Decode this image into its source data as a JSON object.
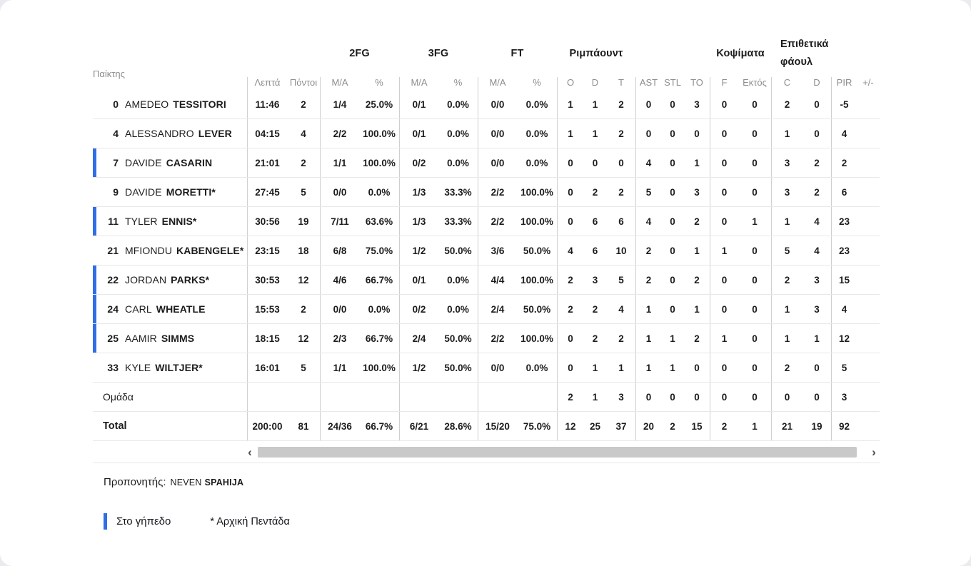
{
  "colors": {
    "accent_blue": "#2e6fe8",
    "text": "#1c1c1e",
    "muted": "#8d8d8d",
    "row_line": "#e8e8e8",
    "group_line": "#cfcfcf",
    "scrollbar_thumb": "#c9c9c9",
    "page_bg": "#e9ebee"
  },
  "table": {
    "player_header": "Παίκτης",
    "groups": {
      "fg2": "2FG",
      "fg3": "3FG",
      "ft": "FT",
      "rebounds": "Ριμπάουντ",
      "blocks": "Κοψίματα",
      "off_fouls": "Επιθετικά φάουλ"
    },
    "sub_headers": [
      "Λεπτά",
      "Πόντοι",
      "M/A",
      "%",
      "M/A",
      "%",
      "M/A",
      "%",
      "O",
      "D",
      "T",
      "AST",
      "STL",
      "TO",
      "F",
      "Εκτός",
      "C",
      "D",
      "PIR",
      "+/-"
    ],
    "rows": [
      {
        "number": "0",
        "first": "AMEDEO",
        "last": "TESSITORI",
        "on_court": false,
        "stats": [
          "11:46",
          "2",
          "1/4",
          "25.0%",
          "0/1",
          "0.0%",
          "0/0",
          "0.0%",
          "1",
          "1",
          "2",
          "0",
          "0",
          "3",
          "0",
          "0",
          "2",
          "0",
          "-5",
          ""
        ]
      },
      {
        "number": "4",
        "first": "ALESSANDRO",
        "last": "LEVER",
        "on_court": false,
        "stats": [
          "04:15",
          "4",
          "2/2",
          "100.0%",
          "0/1",
          "0.0%",
          "0/0",
          "0.0%",
          "1",
          "1",
          "2",
          "0",
          "0",
          "0",
          "0",
          "0",
          "1",
          "0",
          "4",
          ""
        ]
      },
      {
        "number": "7",
        "first": "DAVIDE",
        "last": "CASARIN",
        "on_court": true,
        "stats": [
          "21:01",
          "2",
          "1/1",
          "100.0%",
          "0/2",
          "0.0%",
          "0/0",
          "0.0%",
          "0",
          "0",
          "0",
          "4",
          "0",
          "1",
          "0",
          "0",
          "3",
          "2",
          "2",
          ""
        ]
      },
      {
        "number": "9",
        "first": "DAVIDE",
        "last": "MORETTI*",
        "on_court": false,
        "stats": [
          "27:45",
          "5",
          "0/0",
          "0.0%",
          "1/3",
          "33.3%",
          "2/2",
          "100.0%",
          "0",
          "2",
          "2",
          "5",
          "0",
          "3",
          "0",
          "0",
          "3",
          "2",
          "6",
          ""
        ]
      },
      {
        "number": "11",
        "first": "TYLER",
        "last": "ENNIS*",
        "on_court": true,
        "stats": [
          "30:56",
          "19",
          "7/11",
          "63.6%",
          "1/3",
          "33.3%",
          "2/2",
          "100.0%",
          "0",
          "6",
          "6",
          "4",
          "0",
          "2",
          "0",
          "1",
          "1",
          "4",
          "23",
          ""
        ]
      },
      {
        "number": "21",
        "first": "MFIONDU",
        "last": "KABENGELE*",
        "on_court": false,
        "stats": [
          "23:15",
          "18",
          "6/8",
          "75.0%",
          "1/2",
          "50.0%",
          "3/6",
          "50.0%",
          "4",
          "6",
          "10",
          "2",
          "0",
          "1",
          "1",
          "0",
          "5",
          "4",
          "23",
          ""
        ]
      },
      {
        "number": "22",
        "first": "JORDAN",
        "last": "PARKS*",
        "on_court": true,
        "stats": [
          "30:53",
          "12",
          "4/6",
          "66.7%",
          "0/1",
          "0.0%",
          "4/4",
          "100.0%",
          "2",
          "3",
          "5",
          "2",
          "0",
          "2",
          "0",
          "0",
          "2",
          "3",
          "15",
          ""
        ]
      },
      {
        "number": "24",
        "first": "CARL",
        "last": "WHEATLE",
        "on_court": true,
        "stats": [
          "15:53",
          "2",
          "0/0",
          "0.0%",
          "0/2",
          "0.0%",
          "2/4",
          "50.0%",
          "2",
          "2",
          "4",
          "1",
          "0",
          "1",
          "0",
          "0",
          "1",
          "3",
          "4",
          ""
        ]
      },
      {
        "number": "25",
        "first": "AAMIR",
        "last": "SIMMS",
        "on_court": true,
        "stats": [
          "18:15",
          "12",
          "2/3",
          "66.7%",
          "2/4",
          "50.0%",
          "2/2",
          "100.0%",
          "0",
          "2",
          "2",
          "1",
          "1",
          "2",
          "1",
          "0",
          "1",
          "1",
          "12",
          ""
        ]
      },
      {
        "number": "33",
        "first": "KYLE",
        "last": "WILTJER*",
        "on_court": false,
        "stats": [
          "16:01",
          "5",
          "1/1",
          "100.0%",
          "1/2",
          "50.0%",
          "0/0",
          "0.0%",
          "0",
          "1",
          "1",
          "1",
          "1",
          "0",
          "0",
          "0",
          "2",
          "0",
          "5",
          ""
        ]
      },
      {
        "label": "Ομάδα",
        "team": true,
        "stats": [
          "",
          "",
          "",
          "",
          "",
          "",
          "",
          "",
          "2",
          "1",
          "3",
          "0",
          "0",
          "0",
          "0",
          "0",
          "0",
          "0",
          "3",
          ""
        ]
      },
      {
        "label": "Total",
        "total": true,
        "stats": [
          "200:00",
          "81",
          "24/36",
          "66.7%",
          "6/21",
          "28.6%",
          "15/20",
          "75.0%",
          "12",
          "25",
          "37",
          "20",
          "2",
          "15",
          "2",
          "1",
          "21",
          "19",
          "92",
          ""
        ]
      }
    ]
  },
  "scrollbar": {
    "left": "‹",
    "right": "›"
  },
  "footer": {
    "coach_label": "Προπονητής:",
    "coach_first": "NEVEN",
    "coach_last": "SPAHIJA"
  },
  "legend": {
    "on_court": "Στο γήπεδο",
    "starters": "* Αρχική Πεντάδα"
  }
}
